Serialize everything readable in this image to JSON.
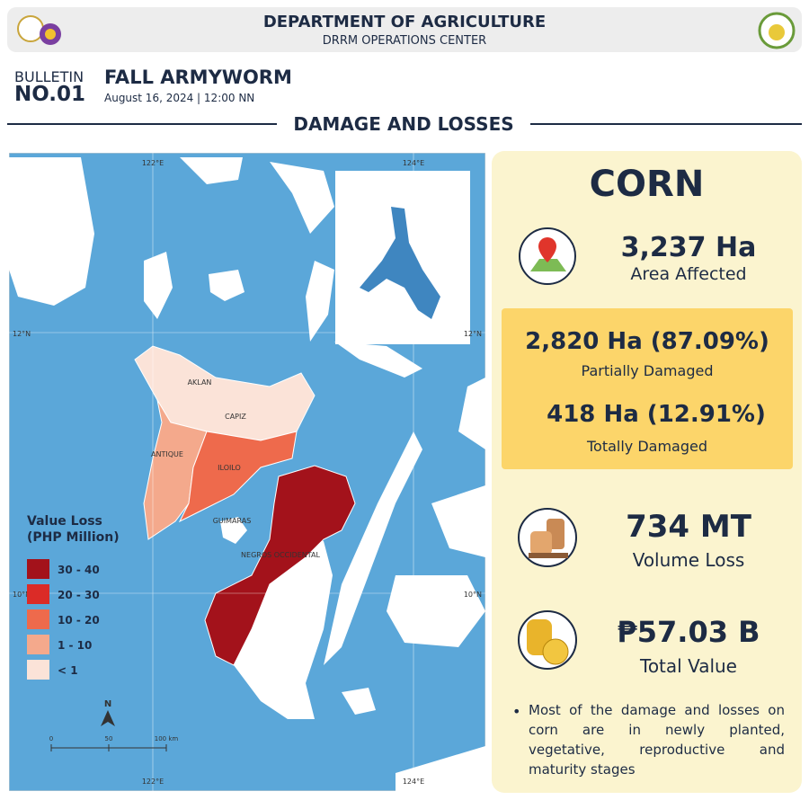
{
  "header": {
    "title": "DEPARTMENT OF AGRICULTURE",
    "subtitle": "DRRM OPERATIONS CENTER"
  },
  "bulletin": {
    "label": "BULLETIN",
    "number": "NO.01",
    "title": "FALL ARMYWORM",
    "date": "August 16, 2024 | 12:00 NN"
  },
  "section_title": "DAMAGE AND LOSSES",
  "map": {
    "lon_labels": [
      "122°E",
      "124°E"
    ],
    "lat_labels": [
      "12°N",
      "10°N"
    ],
    "provinces": [
      "AKLAN",
      "CAPIZ",
      "ANTIQUE",
      "ILOILO",
      "GUIMARAS",
      "NEGROS OCCIDENTAL"
    ],
    "legend": {
      "title_lines": [
        "Value Loss",
        "(PHP Million)"
      ],
      "items": [
        {
          "label": "30 - 40",
          "color": "#a3121b"
        },
        {
          "label": "20 - 30",
          "color": "#db2b27"
        },
        {
          "label": "10 - 20",
          "color": "#ee6a4c"
        },
        {
          "label": "1 - 10",
          "color": "#f4a98c"
        },
        {
          "label": "< 1",
          "color": "#fbe3d8"
        }
      ]
    },
    "north": "N",
    "scale_labels": [
      "0",
      "50",
      "100 km"
    ]
  },
  "panel": {
    "crop": "CORN",
    "area": {
      "value": "3,237 Ha",
      "label": "Area Affected"
    },
    "partial": {
      "value": "2,820 Ha (87.09%)",
      "label": "Partially Damaged"
    },
    "total_damage": {
      "value": "418 Ha (12.91%)",
      "label": "Totally Damaged"
    },
    "volume": {
      "value": "734 MT",
      "label": "Volume Loss"
    },
    "total_value": {
      "value": "₱57.03 B",
      "label": "Total Value"
    },
    "note": "Most of the damage and losses on corn are in newly planted, vegetative, reproductive and maturity stages"
  }
}
